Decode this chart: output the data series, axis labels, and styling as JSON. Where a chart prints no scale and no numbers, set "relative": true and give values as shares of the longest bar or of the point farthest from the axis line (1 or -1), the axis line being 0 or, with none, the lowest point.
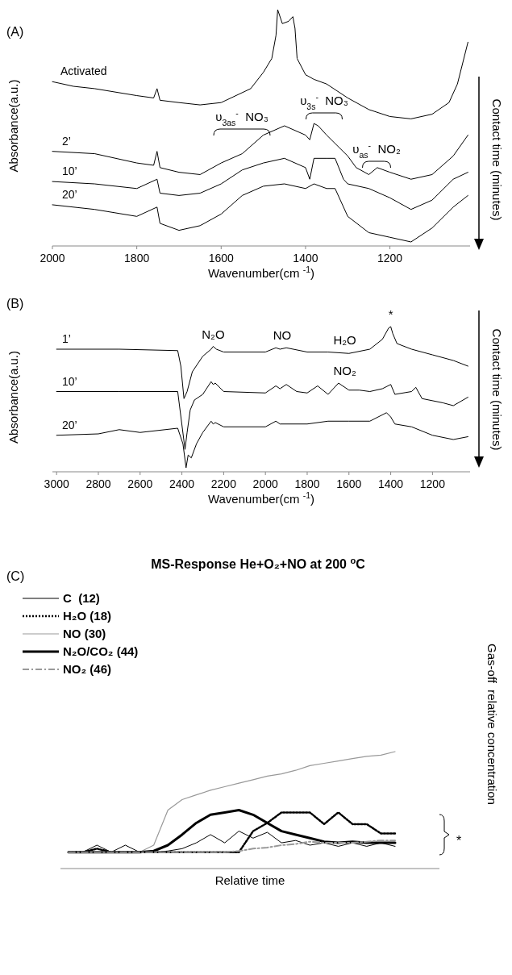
{
  "chart_data": [
    {
      "type": "line",
      "title": "(A)",
      "xlabel": "Wavenumber(cm $^{-1}$)",
      "ylabel": "Absorbance(a.u.)",
      "y2label": "Contact time (minutes)",
      "relative": true,
      "xlim": [
        2000,
        1010
      ],
      "xticks": [
        2000,
        1800,
        1600,
        1400,
        1200
      ],
      "series": [
        {
          "name": "Activated",
          "color": "#000000",
          "x": [
            2000,
            1950,
            1900,
            1800,
            1760,
            1752,
            1745,
            1700,
            1650,
            1600,
            1530,
            1500,
            1480,
            1470,
            1466,
            1455,
            1440,
            1430,
            1425,
            1420,
            1400,
            1380,
            1350,
            1300,
            1250,
            1200,
            1150,
            1100,
            1060,
            1040,
            1015
          ],
          "values": [
            0.69,
            0.67,
            0.66,
            0.63,
            0.62,
            0.66,
            0.61,
            0.6,
            0.59,
            0.6,
            0.66,
            0.73,
            0.79,
            0.89,
            1.0,
            0.94,
            0.95,
            0.97,
            0.92,
            0.79,
            0.72,
            0.7,
            0.68,
            0.62,
            0.57,
            0.54,
            0.53,
            0.55,
            0.6,
            0.68,
            0.86
          ]
        },
        {
          "name": "2’",
          "color": "#000000",
          "x": [
            2000,
            1900,
            1800,
            1760,
            1752,
            1745,
            1700,
            1650,
            1600,
            1550,
            1500,
            1450,
            1400,
            1390,
            1380,
            1370,
            1350,
            1300,
            1280,
            1250,
            1230,
            1200,
            1150,
            1100,
            1050,
            1015
          ],
          "values": [
            0.39,
            0.38,
            0.34,
            0.33,
            0.39,
            0.32,
            0.3,
            0.29,
            0.34,
            0.38,
            0.46,
            0.5,
            0.46,
            0.44,
            0.51,
            0.5,
            0.46,
            0.37,
            0.32,
            0.29,
            0.32,
            0.3,
            0.27,
            0.29,
            0.37,
            0.46
          ]
        },
        {
          "name": "10’",
          "color": "#000000",
          "x": [
            2000,
            1900,
            1800,
            1752,
            1745,
            1700,
            1650,
            1600,
            1550,
            1500,
            1450,
            1400,
            1390,
            1380,
            1350,
            1330,
            1310,
            1300,
            1250,
            1200,
            1150,
            1100,
            1050,
            1015
          ],
          "values": [
            0.26,
            0.25,
            0.23,
            0.27,
            0.21,
            0.2,
            0.21,
            0.25,
            0.31,
            0.34,
            0.36,
            0.32,
            0.27,
            0.36,
            0.36,
            0.36,
            0.27,
            0.25,
            0.23,
            0.19,
            0.14,
            0.18,
            0.27,
            0.3
          ]
        },
        {
          "name": "20’",
          "color": "#000000",
          "x": [
            2000,
            1900,
            1800,
            1752,
            1745,
            1700,
            1650,
            1600,
            1550,
            1500,
            1450,
            1400,
            1380,
            1350,
            1330,
            1300,
            1250,
            1200,
            1150,
            1100,
            1050,
            1015
          ],
          "values": [
            0.16,
            0.14,
            0.11,
            0.15,
            0.08,
            0.05,
            0.07,
            0.12,
            0.2,
            0.24,
            0.25,
            0.23,
            0.25,
            0.23,
            0.23,
            0.11,
            0.04,
            0.02,
            0.0,
            0.06,
            0.15,
            0.2
          ]
        }
      ],
      "annotations": [
        "υ$_{3as}$$^{-}$  NO₃",
        "υ$_{3s}$$^{-}$  NO₃",
        "υ$_{as}$$^{-}$  NO₂"
      ]
    },
    {
      "type": "line",
      "title": "(B)",
      "xlabel": "Wavenumber(cm $^{-1}$)",
      "ylabel": "Absorbance(a.u.)",
      "y2label": "Contact time (minutes)",
      "relative": true,
      "xlim": [
        3020,
        1020
      ],
      "xticks": [
        3000,
        2800,
        2600,
        2400,
        2200,
        2000,
        1800,
        1600,
        1400,
        1200
      ],
      "series": [
        {
          "name": "1’",
          "color": "#000000",
          "x": [
            3000,
            2700,
            2420,
            2405,
            2390,
            2375,
            2350,
            2300,
            2260,
            2250,
            2235,
            2200,
            2000,
            1950,
            1930,
            1900,
            1800,
            1700,
            1600,
            1500,
            1440,
            1410,
            1400,
            1390,
            1370,
            1300,
            1200,
            1100,
            1030
          ],
          "values": [
            0.84,
            0.84,
            0.83,
            0.72,
            0.49,
            0.54,
            0.68,
            0.79,
            0.84,
            0.86,
            0.84,
            0.82,
            0.82,
            0.85,
            0.84,
            0.85,
            0.82,
            0.82,
            0.81,
            0.84,
            0.91,
            0.99,
            1.0,
            0.95,
            0.88,
            0.84,
            0.8,
            0.76,
            0.72
          ]
        },
        {
          "name": "10’",
          "color": "#000000",
          "x": [
            3000,
            2700,
            2420,
            2385,
            2375,
            2360,
            2340,
            2300,
            2260,
            2250,
            2240,
            2200,
            2000,
            1950,
            1930,
            1900,
            1850,
            1800,
            1750,
            1700,
            1650,
            1600,
            1550,
            1500,
            1440,
            1400,
            1380,
            1300,
            1280,
            1250,
            1150,
            1100,
            1030
          ],
          "values": [
            0.54,
            0.54,
            0.54,
            0.13,
            0.25,
            0.41,
            0.48,
            0.52,
            0.61,
            0.59,
            0.6,
            0.54,
            0.53,
            0.58,
            0.56,
            0.59,
            0.54,
            0.53,
            0.58,
            0.52,
            0.6,
            0.55,
            0.55,
            0.54,
            0.56,
            0.59,
            0.52,
            0.54,
            0.57,
            0.49,
            0.46,
            0.44,
            0.5
          ]
        },
        {
          "name": "20’",
          "color": "#000000",
          "x": [
            3000,
            2800,
            2700,
            2600,
            2420,
            2395,
            2380,
            2370,
            2355,
            2330,
            2300,
            2260,
            2250,
            2240,
            2200,
            2000,
            1950,
            1930,
            1800,
            1700,
            1600,
            1500,
            1420,
            1400,
            1380,
            1300,
            1200,
            1100,
            1030
          ],
          "values": [
            0.23,
            0.24,
            0.27,
            0.25,
            0.28,
            0.17,
            0.0,
            0.09,
            0.07,
            0.17,
            0.25,
            0.33,
            0.31,
            0.32,
            0.29,
            0.29,
            0.33,
            0.31,
            0.31,
            0.33,
            0.33,
            0.33,
            0.39,
            0.36,
            0.31,
            0.29,
            0.23,
            0.2,
            0.22
          ]
        }
      ],
      "annotations": [
        {
          "text": "N₂O",
          "x": 2250,
          "y": 0.86
        },
        {
          "text": "NO",
          "x": 1920,
          "y": 0.85
        },
        {
          "text": "H₂O",
          "x": 1620,
          "y": 0.82
        },
        {
          "text": "NO₂",
          "x": 1620,
          "y": 0.6
        },
        {
          "text": "*",
          "x": 1400,
          "y": 1.0
        }
      ]
    },
    {
      "type": "line",
      "title": "MS-Response He+O₂+NO at 200 $^{o}$C",
      "xlabel": "Relative time",
      "y2label": "Gas-off  relative concentration",
      "relative": true,
      "legend": "top left",
      "categories": [
        null,
        null,
        null,
        null,
        null,
        null,
        null,
        null,
        null,
        null,
        null,
        null,
        null,
        null,
        null,
        null,
        null,
        null,
        null,
        null,
        null,
        null,
        null,
        null
      ],
      "series": [
        {
          "name": "C  (12)",
          "color": "#000000",
          "line_style": "solid",
          "values": [
            0.14,
            0.14,
            0.2,
            0.14,
            0.2,
            0.14,
            0.14,
            0.15,
            0.17,
            0.22,
            0.29,
            0.22,
            0.32,
            0.26,
            0.31,
            0.22,
            0.24,
            0.2,
            0.22,
            0.19,
            0.22,
            0.19,
            0.22,
            0.19
          ]
        },
        {
          "name": "H₂O (18)",
          "color": "#000000",
          "line_style": "dotted",
          "values": [
            0.14,
            0.14,
            0.17,
            0.14,
            0.14,
            0.14,
            0.14,
            0.14,
            0.14,
            0.14,
            0.14,
            0.14,
            0.14,
            0.32,
            0.39,
            0.48,
            0.48,
            0.48,
            0.38,
            0.48,
            0.38,
            0.38,
            0.3,
            0.3
          ]
        },
        {
          "name": "NO (30)",
          "color": "#999999",
          "line_style": "solid",
          "values": [
            0.14,
            0.14,
            0.14,
            0.14,
            0.14,
            0.14,
            0.2,
            0.5,
            0.59,
            0.63,
            0.67,
            0.7,
            0.73,
            0.76,
            0.79,
            0.81,
            0.84,
            0.88,
            0.9,
            0.92,
            0.94,
            0.96,
            0.97,
            1.0
          ]
        },
        {
          "name": "N₂O/CO₂ (44)",
          "color": "#000000",
          "line_style": "solid",
          "values": [
            0.14,
            0.14,
            0.14,
            0.14,
            0.14,
            0.14,
            0.15,
            0.2,
            0.29,
            0.39,
            0.46,
            0.48,
            0.5,
            0.46,
            0.39,
            0.32,
            0.29,
            0.26,
            0.23,
            0.22,
            0.23,
            0.22,
            0.22,
            0.22
          ]
        },
        {
          "name": "NO₂ (46)",
          "color": "#999999",
          "line_style": "dashed",
          "values": [
            0.14,
            0.14,
            0.14,
            0.14,
            0.14,
            0.14,
            0.14,
            0.14,
            0.14,
            0.14,
            0.14,
            0.14,
            0.15,
            0.17,
            0.18,
            0.2,
            0.21,
            0.23,
            0.22,
            0.22,
            0.22,
            0.23,
            0.24,
            0.24
          ]
        }
      ],
      "annotations": [
        "(C)",
        "*"
      ]
    }
  ]
}
